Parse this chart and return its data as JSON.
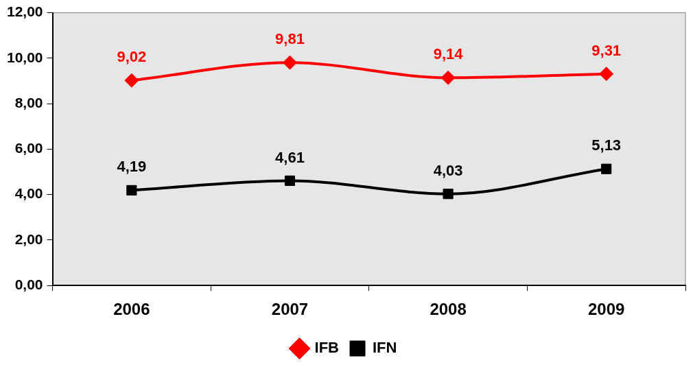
{
  "chart_data": {
    "type": "line",
    "categories": [
      "2006",
      "2007",
      "2008",
      "2009"
    ],
    "series": [
      {
        "name": "IFB",
        "color": "#ff0000",
        "marker": "diamond",
        "values": [
          9.02,
          9.81,
          9.14,
          9.31
        ],
        "value_labels": [
          "9,02",
          "9,81",
          "9,14",
          "9,31"
        ]
      },
      {
        "name": "IFN",
        "color": "#000000",
        "marker": "square",
        "values": [
          4.19,
          4.61,
          4.03,
          5.13
        ],
        "value_labels": [
          "4,19",
          "4,61",
          "4,03",
          "5,13"
        ]
      }
    ],
    "ylim": [
      0,
      12
    ],
    "yticks": [
      {
        "value": 0,
        "label": "0,00"
      },
      {
        "value": 2,
        "label": "2,00"
      },
      {
        "value": 4,
        "label": "4,00"
      },
      {
        "value": 6,
        "label": "6,00"
      },
      {
        "value": 8,
        "label": "8,00"
      },
      {
        "value": 10,
        "label": "10,00"
      },
      {
        "value": 12,
        "label": "12,00"
      }
    ],
    "grid": false,
    "legend": "bottom",
    "line_style": "solid"
  }
}
